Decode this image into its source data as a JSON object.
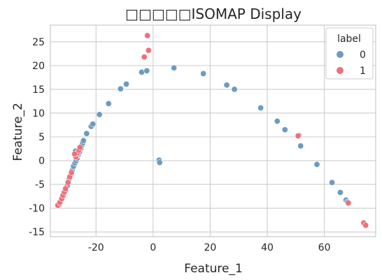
{
  "chart_data": {
    "type": "scatter",
    "title": "□□□□□ISOMAP Display",
    "xlabel": "Feature_1",
    "ylabel": "Feature_2",
    "xlim": [
      -36,
      78
    ],
    "ylim": [
      -16,
      28.5
    ],
    "xticks": [
      -20,
      0,
      20,
      40,
      60
    ],
    "yticks": [
      -15,
      -10,
      -5,
      0,
      5,
      10,
      15,
      20,
      25
    ],
    "grid": true,
    "legend": {
      "title": "label",
      "position": "top-right"
    },
    "colors": {
      "0": "#6b9bc3",
      "1": "#ef6f78"
    },
    "series": [
      {
        "name": "0",
        "points": [
          [
            -33,
            -9.3
          ],
          [
            -31.5,
            -7.5
          ],
          [
            -30.6,
            -6.2
          ],
          [
            -30,
            -5.2
          ],
          [
            -29.4,
            -3.8
          ],
          [
            -28.9,
            -3
          ],
          [
            -28.4,
            -2.1
          ],
          [
            -27.9,
            -1.2
          ],
          [
            -27.4,
            -0.5
          ],
          [
            -27,
            0
          ],
          [
            -26.6,
            0.5
          ],
          [
            -26.2,
            1.2
          ],
          [
            -25.8,
            1.8
          ],
          [
            -25.3,
            2.6
          ],
          [
            -25,
            3.2
          ],
          [
            -24.7,
            3.7
          ],
          [
            -24.4,
            4.2
          ],
          [
            -27.2,
            2
          ],
          [
            -26.7,
            1
          ],
          [
            -23.3,
            5.7
          ],
          [
            -21.7,
            7.2
          ],
          [
            -21.1,
            7.7
          ],
          [
            -18.8,
            9.7
          ],
          [
            -15.6,
            12
          ],
          [
            -11.4,
            15.1
          ],
          [
            -9.4,
            16.1
          ],
          [
            -4,
            18.6
          ],
          [
            -2.2,
            18.9
          ],
          [
            2.1,
            0.1
          ],
          [
            2.3,
            -0.4
          ],
          [
            7.3,
            19.5
          ],
          [
            17.6,
            18.3
          ],
          [
            25.8,
            15.9
          ],
          [
            28.5,
            15
          ],
          [
            37.7,
            11.1
          ],
          [
            43.5,
            8.3
          ],
          [
            46.2,
            6.5
          ],
          [
            51.1,
            5.3
          ],
          [
            51.7,
            3.1
          ],
          [
            57.4,
            -0.8
          ],
          [
            62.7,
            -4.6
          ],
          [
            65.6,
            -6.7
          ],
          [
            67.6,
            -8.3
          ],
          [
            68.1,
            -8.7
          ]
        ]
      },
      {
        "name": "1",
        "points": [
          [
            -2,
            26.3
          ],
          [
            -1.6,
            23.2
          ],
          [
            -3.1,
            21.8
          ],
          [
            -33.4,
            -9.4
          ],
          [
            -32.7,
            -8.8
          ],
          [
            -32,
            -8
          ],
          [
            -31.6,
            -7.3
          ],
          [
            -31.1,
            -6.6
          ],
          [
            -30.7,
            -5.9
          ],
          [
            -29.8,
            -4.6
          ],
          [
            -29.2,
            -3.4
          ],
          [
            -28.6,
            -2.5
          ],
          [
            -27.1,
            0.8
          ],
          [
            -26.5,
            1.6
          ],
          [
            -26,
            2.2
          ],
          [
            -25.6,
            2.8
          ],
          [
            -27.5,
            1.4
          ],
          [
            50.8,
            5.2
          ],
          [
            68.4,
            -8.9
          ],
          [
            73.8,
            -13.1
          ],
          [
            74.5,
            -13.6
          ]
        ]
      }
    ]
  }
}
